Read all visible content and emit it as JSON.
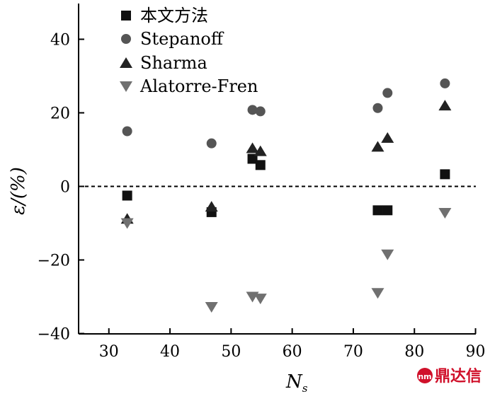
{
  "chart_data": {
    "type": "scatter",
    "title": "",
    "xlabel": "N",
    "xlabel_sub": "s",
    "ylabel": "ε/(%)",
    "xlim": [
      25,
      90
    ],
    "ylim": [
      -40,
      50
    ],
    "xticks": [
      30,
      40,
      50,
      60,
      70,
      80,
      90
    ],
    "yticks": [
      -40,
      -20,
      0,
      20,
      40
    ],
    "ytick_labels": [
      "−40",
      "−20",
      "0",
      "20",
      "40"
    ],
    "reference_line": {
      "y": 0,
      "style": "dashed"
    },
    "legend_position": "top-left",
    "series": [
      {
        "name": "本文方法",
        "marker": "square",
        "color": "#111111",
        "points": [
          [
            33,
            -2.5
          ],
          [
            46.8,
            -7
          ],
          [
            53.5,
            7.5
          ],
          [
            54.8,
            5.8
          ],
          [
            74,
            -6.5
          ],
          [
            75.6,
            -6.5
          ],
          [
            85,
            3.3
          ]
        ]
      },
      {
        "name": "Stepanoff",
        "marker": "circle",
        "color": "#555555",
        "points": [
          [
            33,
            15
          ],
          [
            46.8,
            11.7
          ],
          [
            53.5,
            20.8
          ],
          [
            54.8,
            20.4
          ],
          [
            74,
            21.3
          ],
          [
            75.6,
            25.4
          ],
          [
            85,
            28
          ]
        ]
      },
      {
        "name": "Sharma",
        "marker": "triangle-up",
        "color": "#222222",
        "points": [
          [
            33,
            -8.8
          ],
          [
            46.8,
            -5.5
          ],
          [
            53.5,
            10.4
          ],
          [
            54.8,
            9.6
          ],
          [
            74,
            10.8
          ],
          [
            75.6,
            13.2
          ],
          [
            85,
            22
          ]
        ]
      },
      {
        "name": "Alatorre-Fren",
        "marker": "triangle-down",
        "color": "#707070",
        "points": [
          [
            33,
            -10
          ],
          [
            46.8,
            -32.8
          ],
          [
            53.5,
            -30
          ],
          [
            54.8,
            -30.5
          ],
          [
            74,
            -29
          ],
          [
            75.6,
            -18.5
          ],
          [
            85,
            -7.2
          ]
        ]
      }
    ]
  },
  "watermark": {
    "icon": "dingda-logo-icon",
    "text": "鼎达信",
    "color": "#d0102a"
  }
}
